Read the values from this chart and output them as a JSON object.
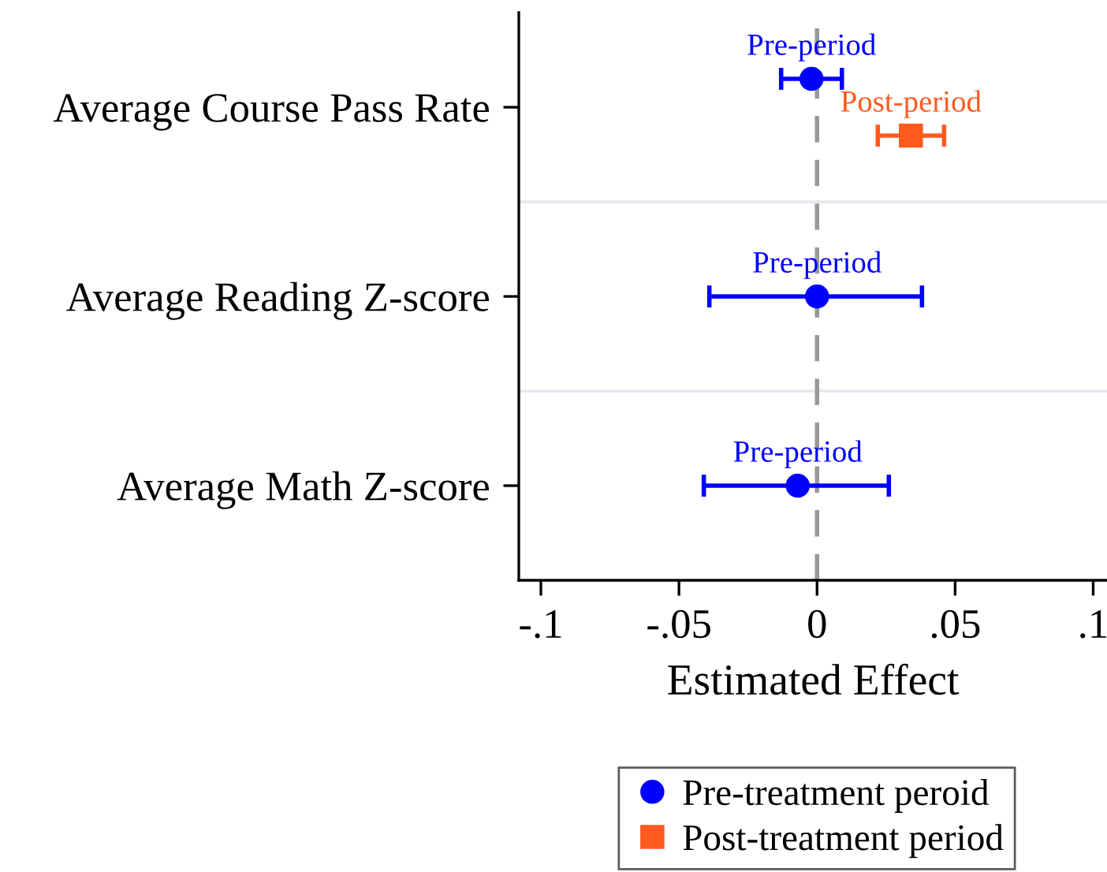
{
  "chart_data": {
    "type": "scatter",
    "orientation": "horizontal",
    "xlabel": "Estimated Effect",
    "categories": [
      "Average Course Pass Rate",
      "Average Reading Z-score",
      "Average Math Z-score"
    ],
    "series": [
      {
        "name": "Pre-treatment peroid",
        "color": "#0000ff",
        "marker": "circle",
        "values": [
          -0.002,
          0.0,
          -0.007
        ],
        "errors": [
          [
            -0.013,
            0.009
          ],
          [
            -0.039,
            0.038
          ],
          [
            -0.041,
            0.026
          ]
        ]
      },
      {
        "name": "Post-treatment period",
        "color": "#ff5a1f",
        "marker": "square",
        "values": [
          0.034,
          null,
          null
        ],
        "errors": [
          [
            0.022,
            0.046
          ],
          null,
          null
        ]
      }
    ],
    "xlim": [
      -0.108,
      0.105
    ],
    "xticks": [
      {
        "value": -0.1,
        "label": "-.1"
      },
      {
        "value": -0.05,
        "label": "-.05"
      },
      0,
      {
        "value": 0.05,
        "label": ".05"
      },
      {
        "value": 0.1,
        "label": ".1"
      }
    ],
    "ref_lines": [
      {
        "axis": "x",
        "value": 0,
        "color": "#999999",
        "line_style": "dashed"
      }
    ],
    "annotations": [
      "Pre-period",
      "Post-period",
      "Pre-period",
      "Pre-period"
    ],
    "grid": "y",
    "legend": "bottom"
  }
}
